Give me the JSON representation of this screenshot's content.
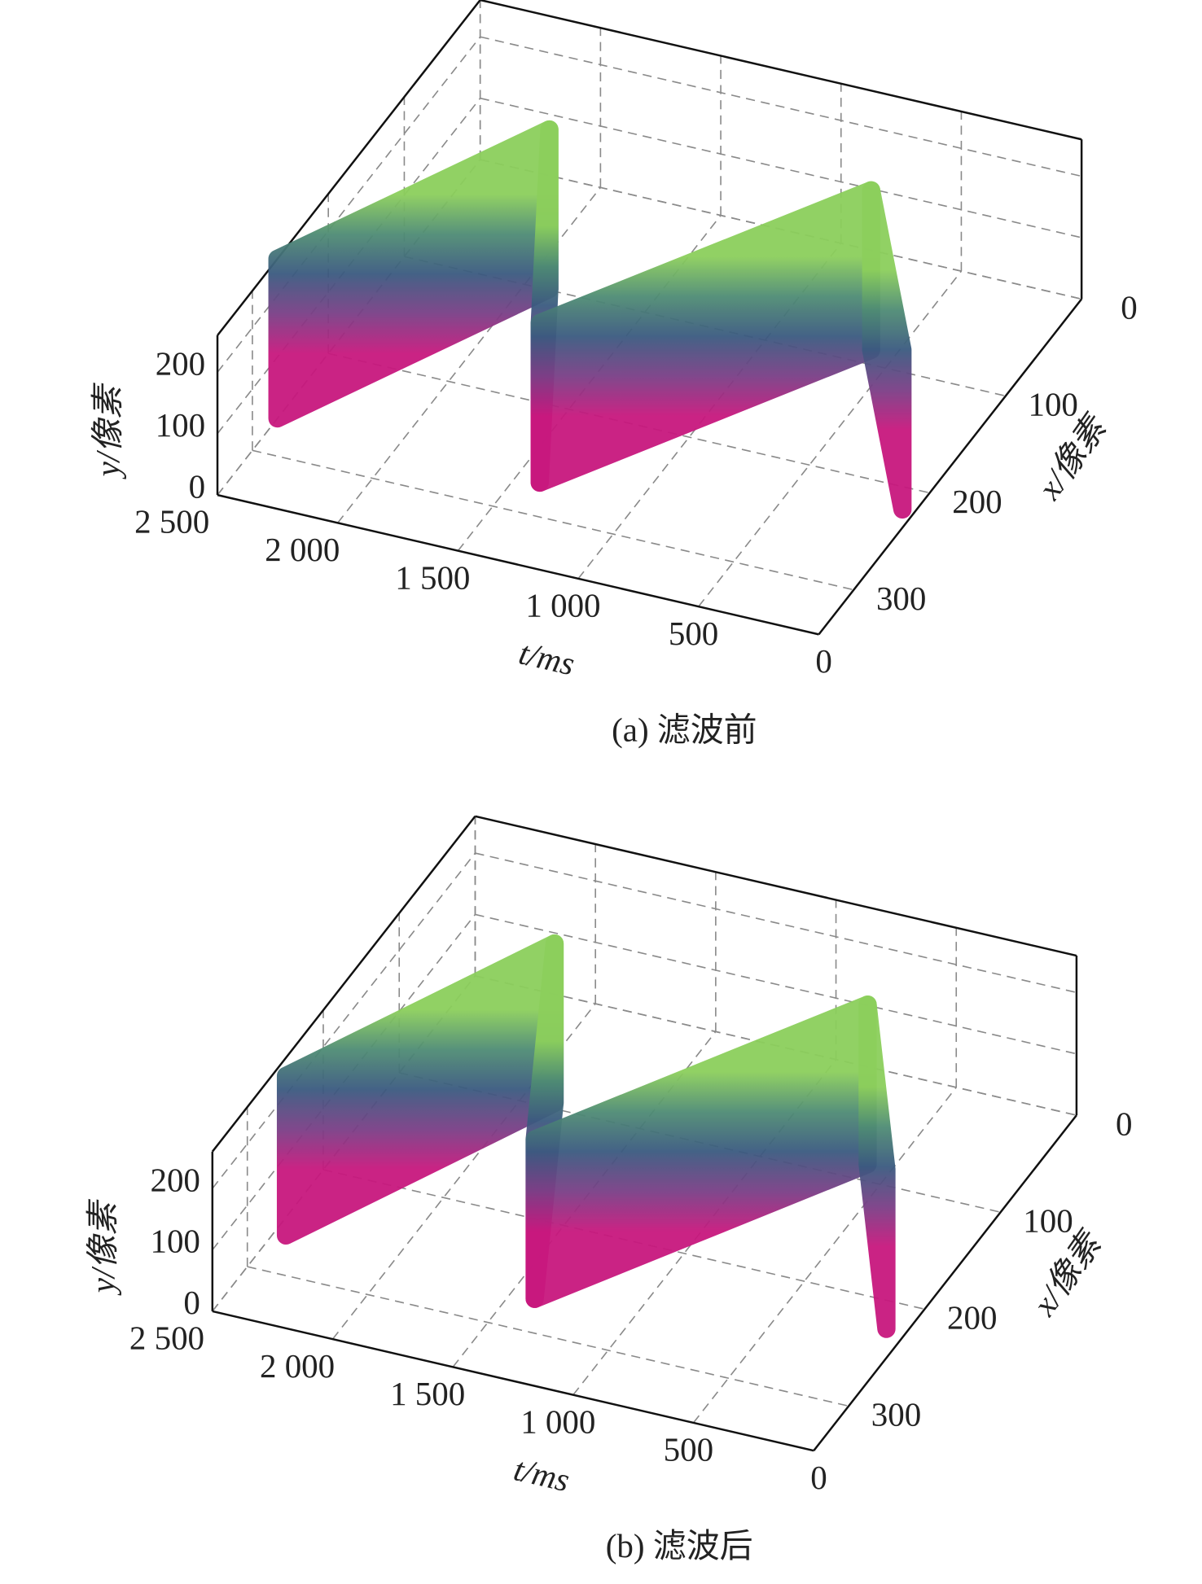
{
  "chart_data": [
    {
      "type": "sawtooth3d",
      "caption": "(a) 滤波前",
      "xlabel": "t/ms",
      "ylabel": "x/像素",
      "zlabel": "y/像素",
      "x": [
        2500,
        1900,
        1400,
        600,
        50
      ],
      "y": [
        267,
        99,
        270,
        87,
        220
      ],
      "xlim": [
        0,
        2500
      ],
      "xticks": [
        {
          "value": 2500,
          "label": "2 500"
        },
        {
          "value": 2000,
          "label": "2 000"
        },
        {
          "value": 1500,
          "label": "1 500"
        },
        {
          "value": 1000,
          "label": "1 000"
        },
        500,
        0
      ],
      "ylim": [
        0,
        346
      ],
      "yticks": [
        0,
        100,
        200,
        300
      ],
      "zlim": [
        0,
        260
      ],
      "zticks": [
        0,
        100,
        200
      ],
      "colormap": [
        "#c8187e",
        "#7a3f86",
        "#3b5a80",
        "#4f8c74",
        "#8ccf5c"
      ],
      "grid": true
    },
    {
      "type": "sawtooth3d",
      "caption": "(b) 滤波后",
      "xlabel": "t/ms",
      "ylabel": "x/像素",
      "zlabel": "y/像素",
      "x": [
        2450,
        1870,
        1400,
        600,
        80
      ],
      "y": [
        265,
        95,
        270,
        85,
        225
      ],
      "xlim": [
        0,
        2500
      ],
      "xticks": [
        {
          "value": 2500,
          "label": "2 500"
        },
        {
          "value": 2000,
          "label": "2 000"
        },
        {
          "value": 1500,
          "label": "1 500"
        },
        {
          "value": 1000,
          "label": "1 000"
        },
        500,
        0
      ],
      "ylim": [
        0,
        346
      ],
      "yticks": [
        0,
        100,
        200,
        300
      ],
      "zlim": [
        0,
        260
      ],
      "zticks": [
        0,
        100,
        200
      ],
      "colormap": [
        "#c8187e",
        "#7a3f86",
        "#3b5a80",
        "#4f8c74",
        "#8ccf5c"
      ],
      "grid": true
    }
  ]
}
